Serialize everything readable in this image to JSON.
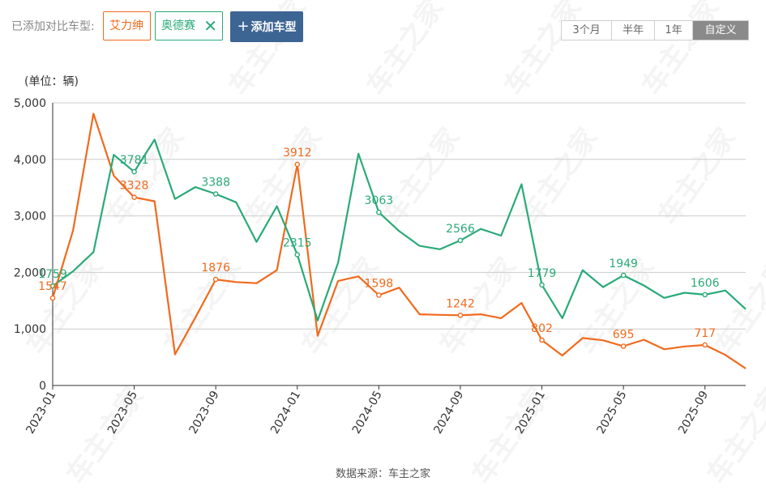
{
  "compare": {
    "label": "已添加对比车型:",
    "models": [
      {
        "name": "艾力绅",
        "color": "#f06a1d"
      },
      {
        "name": "奥德赛",
        "color": "#2aaa78",
        "close_icon": "close-icon"
      }
    ],
    "add_label": "添加车型",
    "add_icon": "plus-icon"
  },
  "ranges": [
    {
      "label": "3个月",
      "active": false
    },
    {
      "label": "半年",
      "active": false
    },
    {
      "label": "1年",
      "active": false
    },
    {
      "label": "自定义",
      "active": true
    }
  ],
  "unit_label": "(单位：辆)",
  "source": "数据来源：车主之家",
  "watermark": "车主之家",
  "chart_data": {
    "type": "line",
    "ylim": [
      0,
      5000
    ],
    "yticks": [
      0,
      1000,
      2000,
      3000,
      4000,
      5000
    ],
    "ytick_labels": [
      "0",
      "1,000",
      "2,000",
      "3,000",
      "4,000",
      "5,000"
    ],
    "x": [
      "2023-01",
      "2023-02",
      "2023-03",
      "2023-04",
      "2023-05",
      "2023-06",
      "2023-07",
      "2023-08",
      "2023-09",
      "2023-10",
      "2023-11",
      "2023-12",
      "2024-01",
      "2024-02",
      "2024-03",
      "2024-04",
      "2024-05",
      "2024-06",
      "2024-07",
      "2024-08",
      "2024-09",
      "2024-10",
      "2024-11",
      "2024-12",
      "2025-01",
      "2025-02",
      "2025-03",
      "2025-04",
      "2025-05",
      "2025-06",
      "2025-07",
      "2025-08",
      "2025-09",
      "2025-10",
      "2025-11"
    ],
    "xtick_labels": [
      "2023-01",
      "2023-05",
      "2023-09",
      "2024-01",
      "2024-05",
      "2024-09",
      "2025-01",
      "2025-05",
      "2025-09"
    ],
    "grid": true,
    "series": [
      {
        "name": "艾力绅",
        "color": "#f06a1d",
        "values": [
          1547,
          2740,
          4810,
          3710,
          3328,
          3260,
          550,
          1200,
          1876,
          1830,
          1810,
          2040,
          3912,
          880,
          1850,
          1930,
          1598,
          1730,
          1260,
          1250,
          1242,
          1260,
          1190,
          1460,
          802,
          530,
          840,
          800,
          695,
          810,
          640,
          690,
          717,
          540,
          300
        ],
        "labeled_indices": [
          0,
          4,
          8,
          12,
          16,
          20,
          24,
          28,
          32
        ],
        "labels": [
          "1547",
          "3328",
          "1876",
          "3912",
          "1598",
          "1242",
          "802",
          "695",
          "717"
        ]
      },
      {
        "name": "奥德赛",
        "color": "#2aaa78",
        "values": [
          1759,
          2020,
          2360,
          4080,
          3781,
          4350,
          3300,
          3510,
          3388,
          3240,
          2540,
          3170,
          2315,
          1150,
          2170,
          4100,
          3063,
          2730,
          2470,
          2410,
          2566,
          2770,
          2650,
          3560,
          1779,
          1190,
          2040,
          1740,
          1949,
          1770,
          1550,
          1640,
          1606,
          1680,
          1350
        ],
        "labeled_indices": [
          0,
          4,
          8,
          12,
          16,
          20,
          24,
          28,
          32
        ],
        "labels": [
          "1759",
          "3781",
          "3388",
          "2315",
          "3063",
          "2566",
          "1779",
          "1949",
          "1606"
        ]
      }
    ]
  }
}
